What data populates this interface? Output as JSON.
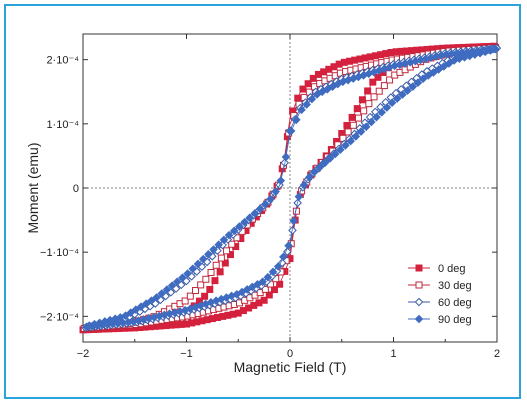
{
  "chart_data": {
    "type": "scatter",
    "title": "",
    "xlabel": "Magnetic Field (T)",
    "ylabel": "Moment (emu)",
    "xlim": [
      -2,
      2
    ],
    "ylim": [
      -0.00024,
      0.00024
    ],
    "x_ticks": [
      {
        "value": -2,
        "label": "−2"
      },
      {
        "value": -1,
        "label": "−1"
      },
      {
        "value": 0,
        "label": "0"
      },
      {
        "value": 1,
        "label": "1"
      },
      {
        "value": 2,
        "label": "2"
      }
    ],
    "y_ticks": [
      {
        "value": -0.0002,
        "label": "−2·10⁻⁴"
      },
      {
        "value": -0.0001,
        "label": "−1·10⁻⁴"
      },
      {
        "value": 0,
        "label": "0"
      },
      {
        "value": 0.0001,
        "label": "1·10⁻⁴"
      },
      {
        "value": 0.0002,
        "label": "2·10⁻⁴"
      }
    ],
    "reference_lines": {
      "x": 0,
      "y": 0
    },
    "legend_position": "bottom-right",
    "series": [
      {
        "name": "0 deg",
        "color": "#d4213d",
        "marker": "square-filled",
        "ascending": [
          [
            -2,
            -0.000221
          ],
          [
            -1.5,
            -0.000218
          ],
          [
            -1,
            -0.000212
          ],
          [
            -0.5,
            -0.000195
          ],
          [
            -0.25,
            -0.000175
          ],
          [
            -0.1,
            -0.00015
          ],
          [
            0,
            -0.00011
          ],
          [
            0.05,
            -5e-05
          ],
          [
            0.1,
            -1e-05
          ],
          [
            0.2,
            2e-05
          ],
          [
            0.4,
            6e-05
          ],
          [
            0.6,
            0.00011
          ],
          [
            0.8,
            0.000165
          ],
          [
            1,
            0.000195
          ],
          [
            1.3,
            0.000212
          ],
          [
            1.6,
            0.000218
          ],
          [
            2,
            0.000221
          ]
        ],
        "descending": [
          [
            2,
            0.000221
          ],
          [
            1.5,
            0.000218
          ],
          [
            1,
            0.000212
          ],
          [
            0.5,
            0.000195
          ],
          [
            0.25,
            0.000175
          ],
          [
            0.1,
            0.00015
          ],
          [
            0,
            0.00011
          ],
          [
            -0.05,
            5e-05
          ],
          [
            -0.1,
            1e-05
          ],
          [
            -0.2,
            -2e-05
          ],
          [
            -0.4,
            -6e-05
          ],
          [
            -0.6,
            -0.00011
          ],
          [
            -0.8,
            -0.000165
          ],
          [
            -1,
            -0.000195
          ],
          [
            -1.3,
            -0.000212
          ],
          [
            -1.6,
            -0.000218
          ],
          [
            -2,
            -0.000221
          ]
        ]
      },
      {
        "name": "30 deg",
        "color": "#c0283c",
        "marker": "square-open",
        "ascending": [
          [
            -2,
            -0.000219
          ],
          [
            -1.5,
            -0.000213
          ],
          [
            -1,
            -0.0002
          ],
          [
            -0.5,
            -0.00018
          ],
          [
            -0.25,
            -0.00016
          ],
          [
            -0.1,
            -0.000135
          ],
          [
            0,
            -0.0001
          ],
          [
            0.05,
            -4.5e-05
          ],
          [
            0.1,
            -8e-06
          ],
          [
            0.2,
            2e-05
          ],
          [
            0.4,
            5.5e-05
          ],
          [
            0.6,
            9.5e-05
          ],
          [
            0.8,
            0.00014
          ],
          [
            1,
            0.000175
          ],
          [
            1.3,
            0.0002
          ],
          [
            1.6,
            0.000213
          ],
          [
            2,
            0.000219
          ]
        ],
        "descending": [
          [
            2,
            0.000219
          ],
          [
            1.5,
            0.000213
          ],
          [
            1,
            0.0002
          ],
          [
            0.5,
            0.00018
          ],
          [
            0.25,
            0.00016
          ],
          [
            0.1,
            0.000135
          ],
          [
            0,
            0.0001
          ],
          [
            -0.05,
            4.5e-05
          ],
          [
            -0.1,
            8e-06
          ],
          [
            -0.2,
            -2e-05
          ],
          [
            -0.4,
            -5.5e-05
          ],
          [
            -0.6,
            -9.5e-05
          ],
          [
            -0.8,
            -0.00014
          ],
          [
            -1,
            -0.000175
          ],
          [
            -1.3,
            -0.0002
          ],
          [
            -1.6,
            -0.000213
          ],
          [
            -2,
            -0.000219
          ]
        ]
      },
      {
        "name": "60 deg",
        "color": "#3a5aa8",
        "marker": "diamond-open",
        "ascending": [
          [
            -2,
            -0.000218
          ],
          [
            -1.5,
            -0.00021
          ],
          [
            -1,
            -0.000193
          ],
          [
            -0.5,
            -0.00017
          ],
          [
            -0.25,
            -0.00015
          ],
          [
            -0.1,
            -0.000125
          ],
          [
            0,
            -9e-05
          ],
          [
            0.05,
            -4e-05
          ],
          [
            0.1,
            -5e-06
          ],
          [
            0.2,
            2e-05
          ],
          [
            0.4,
            5e-05
          ],
          [
            0.6,
            8e-05
          ],
          [
            0.8,
            0.000115
          ],
          [
            1,
            0.000145
          ],
          [
            1.3,
            0.00018
          ],
          [
            1.6,
            0.000205
          ],
          [
            2,
            0.000218
          ]
        ],
        "descending": [
          [
            2,
            0.000218
          ],
          [
            1.5,
            0.00021
          ],
          [
            1,
            0.000193
          ],
          [
            0.5,
            0.00017
          ],
          [
            0.25,
            0.00015
          ],
          [
            0.1,
            0.000125
          ],
          [
            0,
            9e-05
          ],
          [
            -0.05,
            4e-05
          ],
          [
            -0.1,
            5e-06
          ],
          [
            -0.2,
            -2e-05
          ],
          [
            -0.4,
            -5e-05
          ],
          [
            -0.6,
            -8e-05
          ],
          [
            -0.8,
            -0.000115
          ],
          [
            -1,
            -0.000145
          ],
          [
            -1.3,
            -0.00018
          ],
          [
            -1.6,
            -0.000205
          ],
          [
            -2,
            -0.000218
          ]
        ]
      },
      {
        "name": "90 deg",
        "color": "#3f6cc0",
        "marker": "diamond-filled",
        "ascending": [
          [
            -2,
            -0.000217
          ],
          [
            -1.5,
            -0.000208
          ],
          [
            -1,
            -0.00019
          ],
          [
            -0.5,
            -0.000165
          ],
          [
            -0.25,
            -0.000145
          ],
          [
            -0.1,
            -0.00012
          ],
          [
            0,
            -8.5e-05
          ],
          [
            0.05,
            -3.8e-05
          ],
          [
            0.1,
            -4e-06
          ],
          [
            0.2,
            2e-05
          ],
          [
            0.4,
            4.8e-05
          ],
          [
            0.6,
            7.5e-05
          ],
          [
            0.8,
            0.000105
          ],
          [
            1,
            0.000135
          ],
          [
            1.3,
            0.000172
          ],
          [
            1.6,
            0.0002
          ],
          [
            2,
            0.000217
          ]
        ],
        "descending": [
          [
            2,
            0.000217
          ],
          [
            1.5,
            0.000208
          ],
          [
            1,
            0.00019
          ],
          [
            0.5,
            0.000165
          ],
          [
            0.25,
            0.000145
          ],
          [
            0.1,
            0.00012
          ],
          [
            0,
            8.5e-05
          ],
          [
            -0.05,
            3.8e-05
          ],
          [
            -0.1,
            4e-06
          ],
          [
            -0.2,
            -2e-05
          ],
          [
            -0.4,
            -4.8e-05
          ],
          [
            -0.6,
            -7.5e-05
          ],
          [
            -0.8,
            -0.000105
          ],
          [
            -1,
            -0.000135
          ],
          [
            -1.3,
            -0.000172
          ],
          [
            -1.6,
            -0.0002
          ],
          [
            -2,
            -0.000217
          ]
        ]
      }
    ]
  }
}
